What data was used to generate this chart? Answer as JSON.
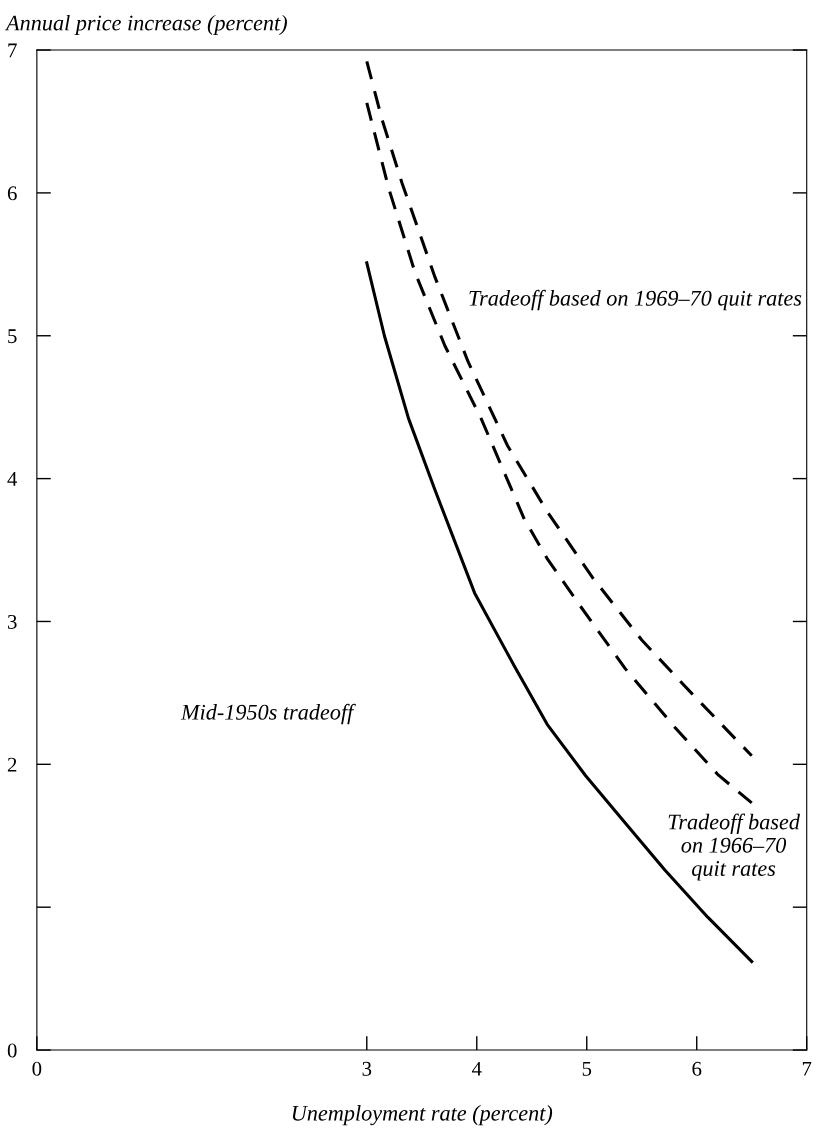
{
  "chart_data": {
    "type": "line",
    "xlabel": "Unemployment rate (percent)",
    "ylabel": "Annual price increase (percent)",
    "xlim": [
      0,
      7
    ],
    "xticks": [
      0,
      3,
      4,
      5,
      6,
      7
    ],
    "ylim": [
      0,
      7
    ],
    "yticks": [
      0,
      {
        "value": 1,
        "label": null
      },
      2,
      3,
      4,
      5,
      6,
      7
    ],
    "grid": false,
    "legend": false,
    "marker": "none",
    "series": [
      {
        "color": "#000000",
        "line_style": "solid",
        "x": [
          3,
          3.16,
          3.38,
          3.62,
          3.98,
          4.34,
          4.64,
          4.99,
          5.35,
          5.71,
          6.1,
          6.5
        ],
        "values": [
          5.51,
          5.0,
          4.42,
          3.92,
          3.2,
          2.69,
          2.28,
          1.92,
          1.59,
          1.26,
          0.93,
          0.62
        ]
      },
      {
        "color": "#000000",
        "line_style": "dashed",
        "x": [
          3,
          3.14,
          3.32,
          3.62,
          3.92,
          4.28,
          4.64,
          5.05,
          5.5,
          5.95,
          6.5
        ],
        "values": [
          6.92,
          6.51,
          6.07,
          5.41,
          4.82,
          4.23,
          3.77,
          3.31,
          2.87,
          2.5,
          2.06
        ]
      },
      {
        "color": "#000000",
        "line_style": "dashed",
        "x": [
          3,
          3.2,
          3.44,
          3.71,
          4.04,
          4.43,
          4.64,
          4.93,
          5.35,
          5.8,
          6.19,
          6.5
        ],
        "values": [
          6.63,
          6.03,
          5.44,
          4.93,
          4.42,
          3.72,
          3.44,
          3.12,
          2.67,
          2.26,
          1.93,
          1.73
        ]
      }
    ],
    "annotations": [
      "Tradeoff based on 1969–70 quit rates",
      "Mid-1950s tradeoff",
      "Tradeoff based\non 1966–70\nquit rates"
    ]
  }
}
